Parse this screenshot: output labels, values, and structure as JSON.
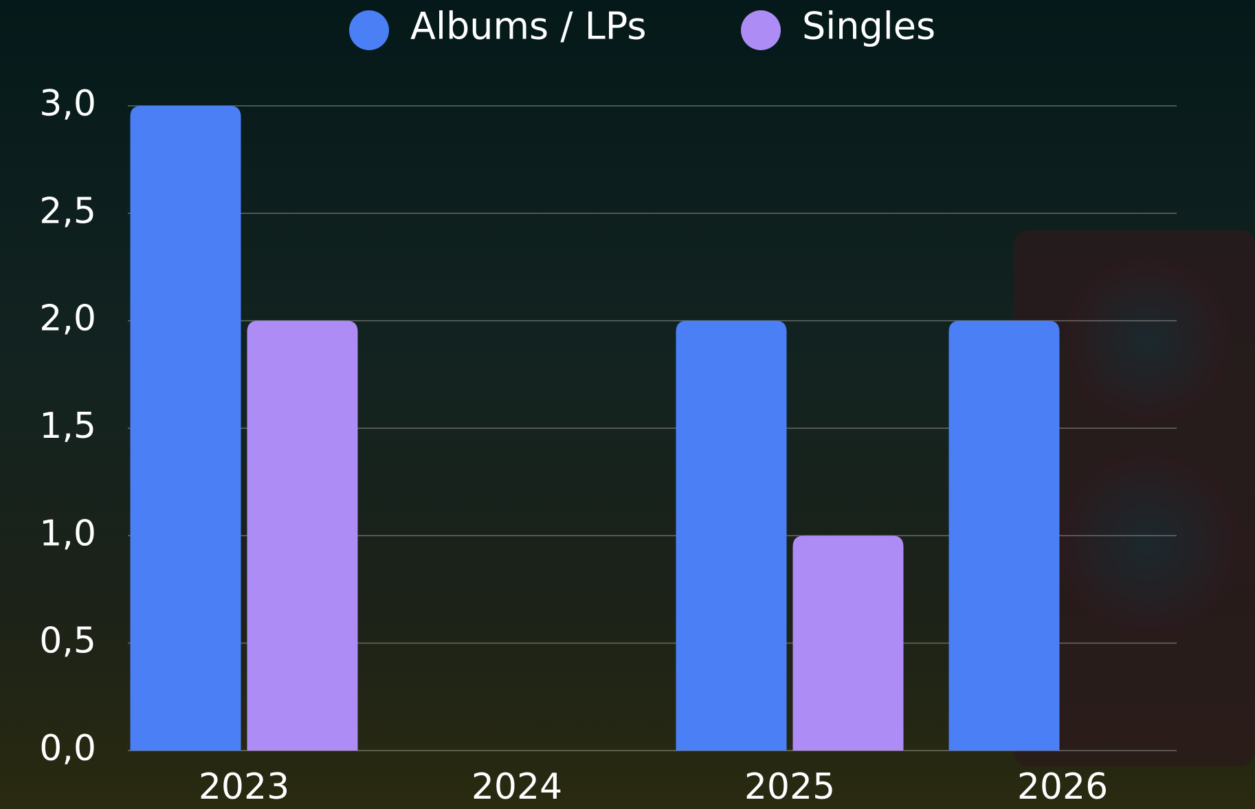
{
  "chart_data": {
    "type": "bar",
    "categories": [
      "2023",
      "2024",
      "2025",
      "2026"
    ],
    "series": [
      {
        "name": "Albums / LPs",
        "color": "#4a7ff5",
        "values": [
          3,
          0,
          2,
          2
        ]
      },
      {
        "name": "Singles",
        "color": "#ae8cf5",
        "values": [
          2,
          0,
          1,
          0
        ]
      }
    ],
    "ylim": [
      0,
      3
    ],
    "yticks": [
      {
        "value": 0,
        "label": "0,0"
      },
      {
        "value": 0.5,
        "label": "0,5"
      },
      {
        "value": 1,
        "label": "1,0"
      },
      {
        "value": 1.5,
        "label": "1,5"
      },
      {
        "value": 2,
        "label": "2,0"
      },
      {
        "value": 2.5,
        "label": "2,5"
      },
      {
        "value": 3,
        "label": "3,0"
      }
    ],
    "grid": true
  }
}
